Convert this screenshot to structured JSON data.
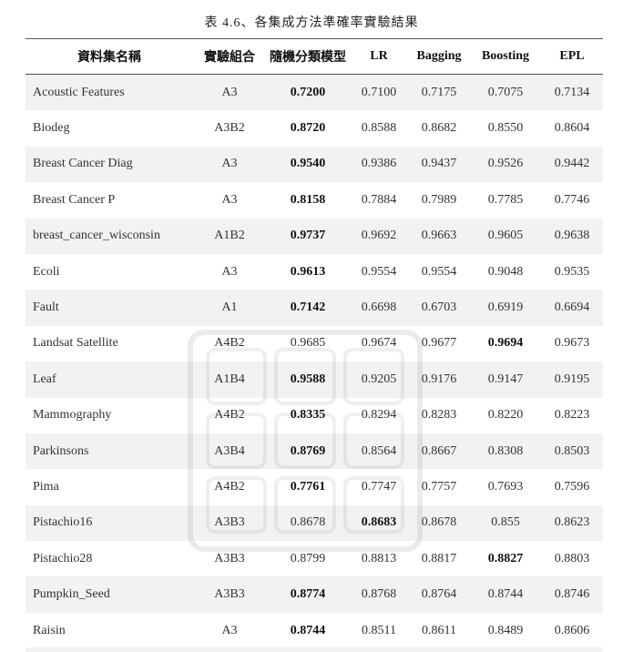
{
  "caption": "表 4.6、各集成方法準確率實驗結果",
  "columns": {
    "name": "資料集名稱",
    "combination": "實驗組合",
    "rf": "隨機分類模型",
    "lr": "LR",
    "bagging": "Bagging",
    "boosting": "Boosting",
    "epl": "EPL"
  },
  "rows": [
    {
      "name": "Acoustic Features",
      "combination": "A3",
      "rf": "0.7200",
      "lr": "0.7100",
      "bagging": "0.7175",
      "boosting": "0.7075",
      "epl": "0.7134",
      "best": "rf"
    },
    {
      "name": "Biodeg",
      "combination": "A3B2",
      "rf": "0.8720",
      "lr": "0.8588",
      "bagging": "0.8682",
      "boosting": "0.8550",
      "epl": "0.8604",
      "best": "rf"
    },
    {
      "name": "Breast Cancer Diag",
      "combination": "A3",
      "rf": "0.9540",
      "lr": "0.9386",
      "bagging": "0.9437",
      "boosting": "0.9526",
      "epl": "0.9442",
      "best": "rf"
    },
    {
      "name": "Breast Cancer P",
      "combination": "A3",
      "rf": "0.8158",
      "lr": "0.7884",
      "bagging": "0.7989",
      "boosting": "0.7785",
      "epl": "0.7746",
      "best": "rf"
    },
    {
      "name": "breast_cancer_wisconsin",
      "combination": "A1B2",
      "rf": "0.9737",
      "lr": "0.9692",
      "bagging": "0.9663",
      "boosting": "0.9605",
      "epl": "0.9638",
      "best": "rf"
    },
    {
      "name": "Ecoli",
      "combination": "A3",
      "rf": "0.9613",
      "lr": "0.9554",
      "bagging": "0.9554",
      "boosting": "0.9048",
      "epl": "0.9535",
      "best": "rf"
    },
    {
      "name": "Fault",
      "combination": "A1",
      "rf": "0.7142",
      "lr": "0.6698",
      "bagging": "0.6703",
      "boosting": "0.6919",
      "epl": "0.6694",
      "best": "rf"
    },
    {
      "name": "Landsat Satellite",
      "combination": "A4B2",
      "rf": "0.9685",
      "lr": "0.9674",
      "bagging": "0.9677",
      "boosting": "0.9694",
      "epl": "0.9673",
      "best": "boosting"
    },
    {
      "name": "Leaf",
      "combination": "A1B4",
      "rf": "0.9588",
      "lr": "0.9205",
      "bagging": "0.9176",
      "boosting": "0.9147",
      "epl": "0.9195",
      "best": "rf"
    },
    {
      "name": "Mammography",
      "combination": "A4B2",
      "rf": "0.8335",
      "lr": "0.8294",
      "bagging": "0.8283",
      "boosting": "0.8220",
      "epl": "0.8223",
      "best": "rf"
    },
    {
      "name": "Parkinsons",
      "combination": "A3B4",
      "rf": "0.8769",
      "lr": "0.8564",
      "bagging": "0.8667",
      "boosting": "0.8308",
      "epl": "0.8503",
      "best": "rf"
    },
    {
      "name": "Pima",
      "combination": "A4B2",
      "rf": "0.7761",
      "lr": "0.7747",
      "bagging": "0.7757",
      "boosting": "0.7693",
      "epl": "0.7596",
      "best": "rf"
    },
    {
      "name": "Pistachio16",
      "combination": "A3B3",
      "rf": "0.8678",
      "lr": "0.8683",
      "bagging": "0.8678",
      "boosting": "0.855",
      "epl": "0.8623",
      "best": "lr"
    },
    {
      "name": "Pistachio28",
      "combination": "A3B3",
      "rf": "0.8799",
      "lr": "0.8813",
      "bagging": "0.8817",
      "boosting": "0.8827",
      "epl": "0.8803",
      "best": "boosting"
    },
    {
      "name": "Pumpkin_Seed",
      "combination": "A3B3",
      "rf": "0.8774",
      "lr": "0.8768",
      "bagging": "0.8764",
      "boosting": "0.8744",
      "epl": "0.8746",
      "best": "rf"
    },
    {
      "name": "Raisin",
      "combination": "A3",
      "rf": "0.8744",
      "lr": "0.8511",
      "bagging": "0.8611",
      "boosting": "0.8489",
      "epl": "0.8606",
      "best": "rf"
    }
  ]
}
